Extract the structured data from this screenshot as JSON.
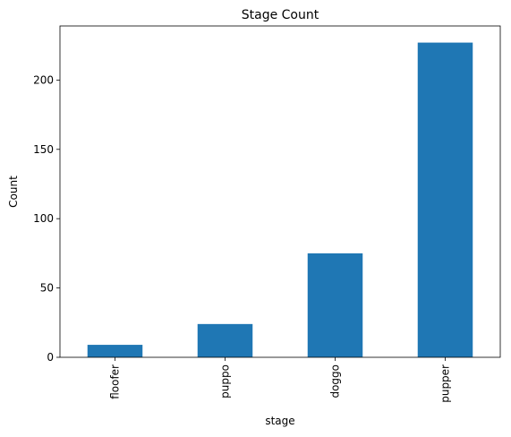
{
  "chart_data": {
    "type": "bar",
    "title": "Stage Count",
    "xlabel": "stage",
    "ylabel": "Count",
    "categories": [
      "floofer",
      "puppo",
      "doggo",
      "pupper"
    ],
    "values": [
      9,
      24,
      75,
      227
    ],
    "ylim": [
      0,
      239
    ],
    "yticks": [
      0,
      50,
      100,
      150,
      200
    ],
    "grid": false,
    "legend": "none",
    "bar_color": "#1f77b4",
    "axis_color": "#000000"
  }
}
